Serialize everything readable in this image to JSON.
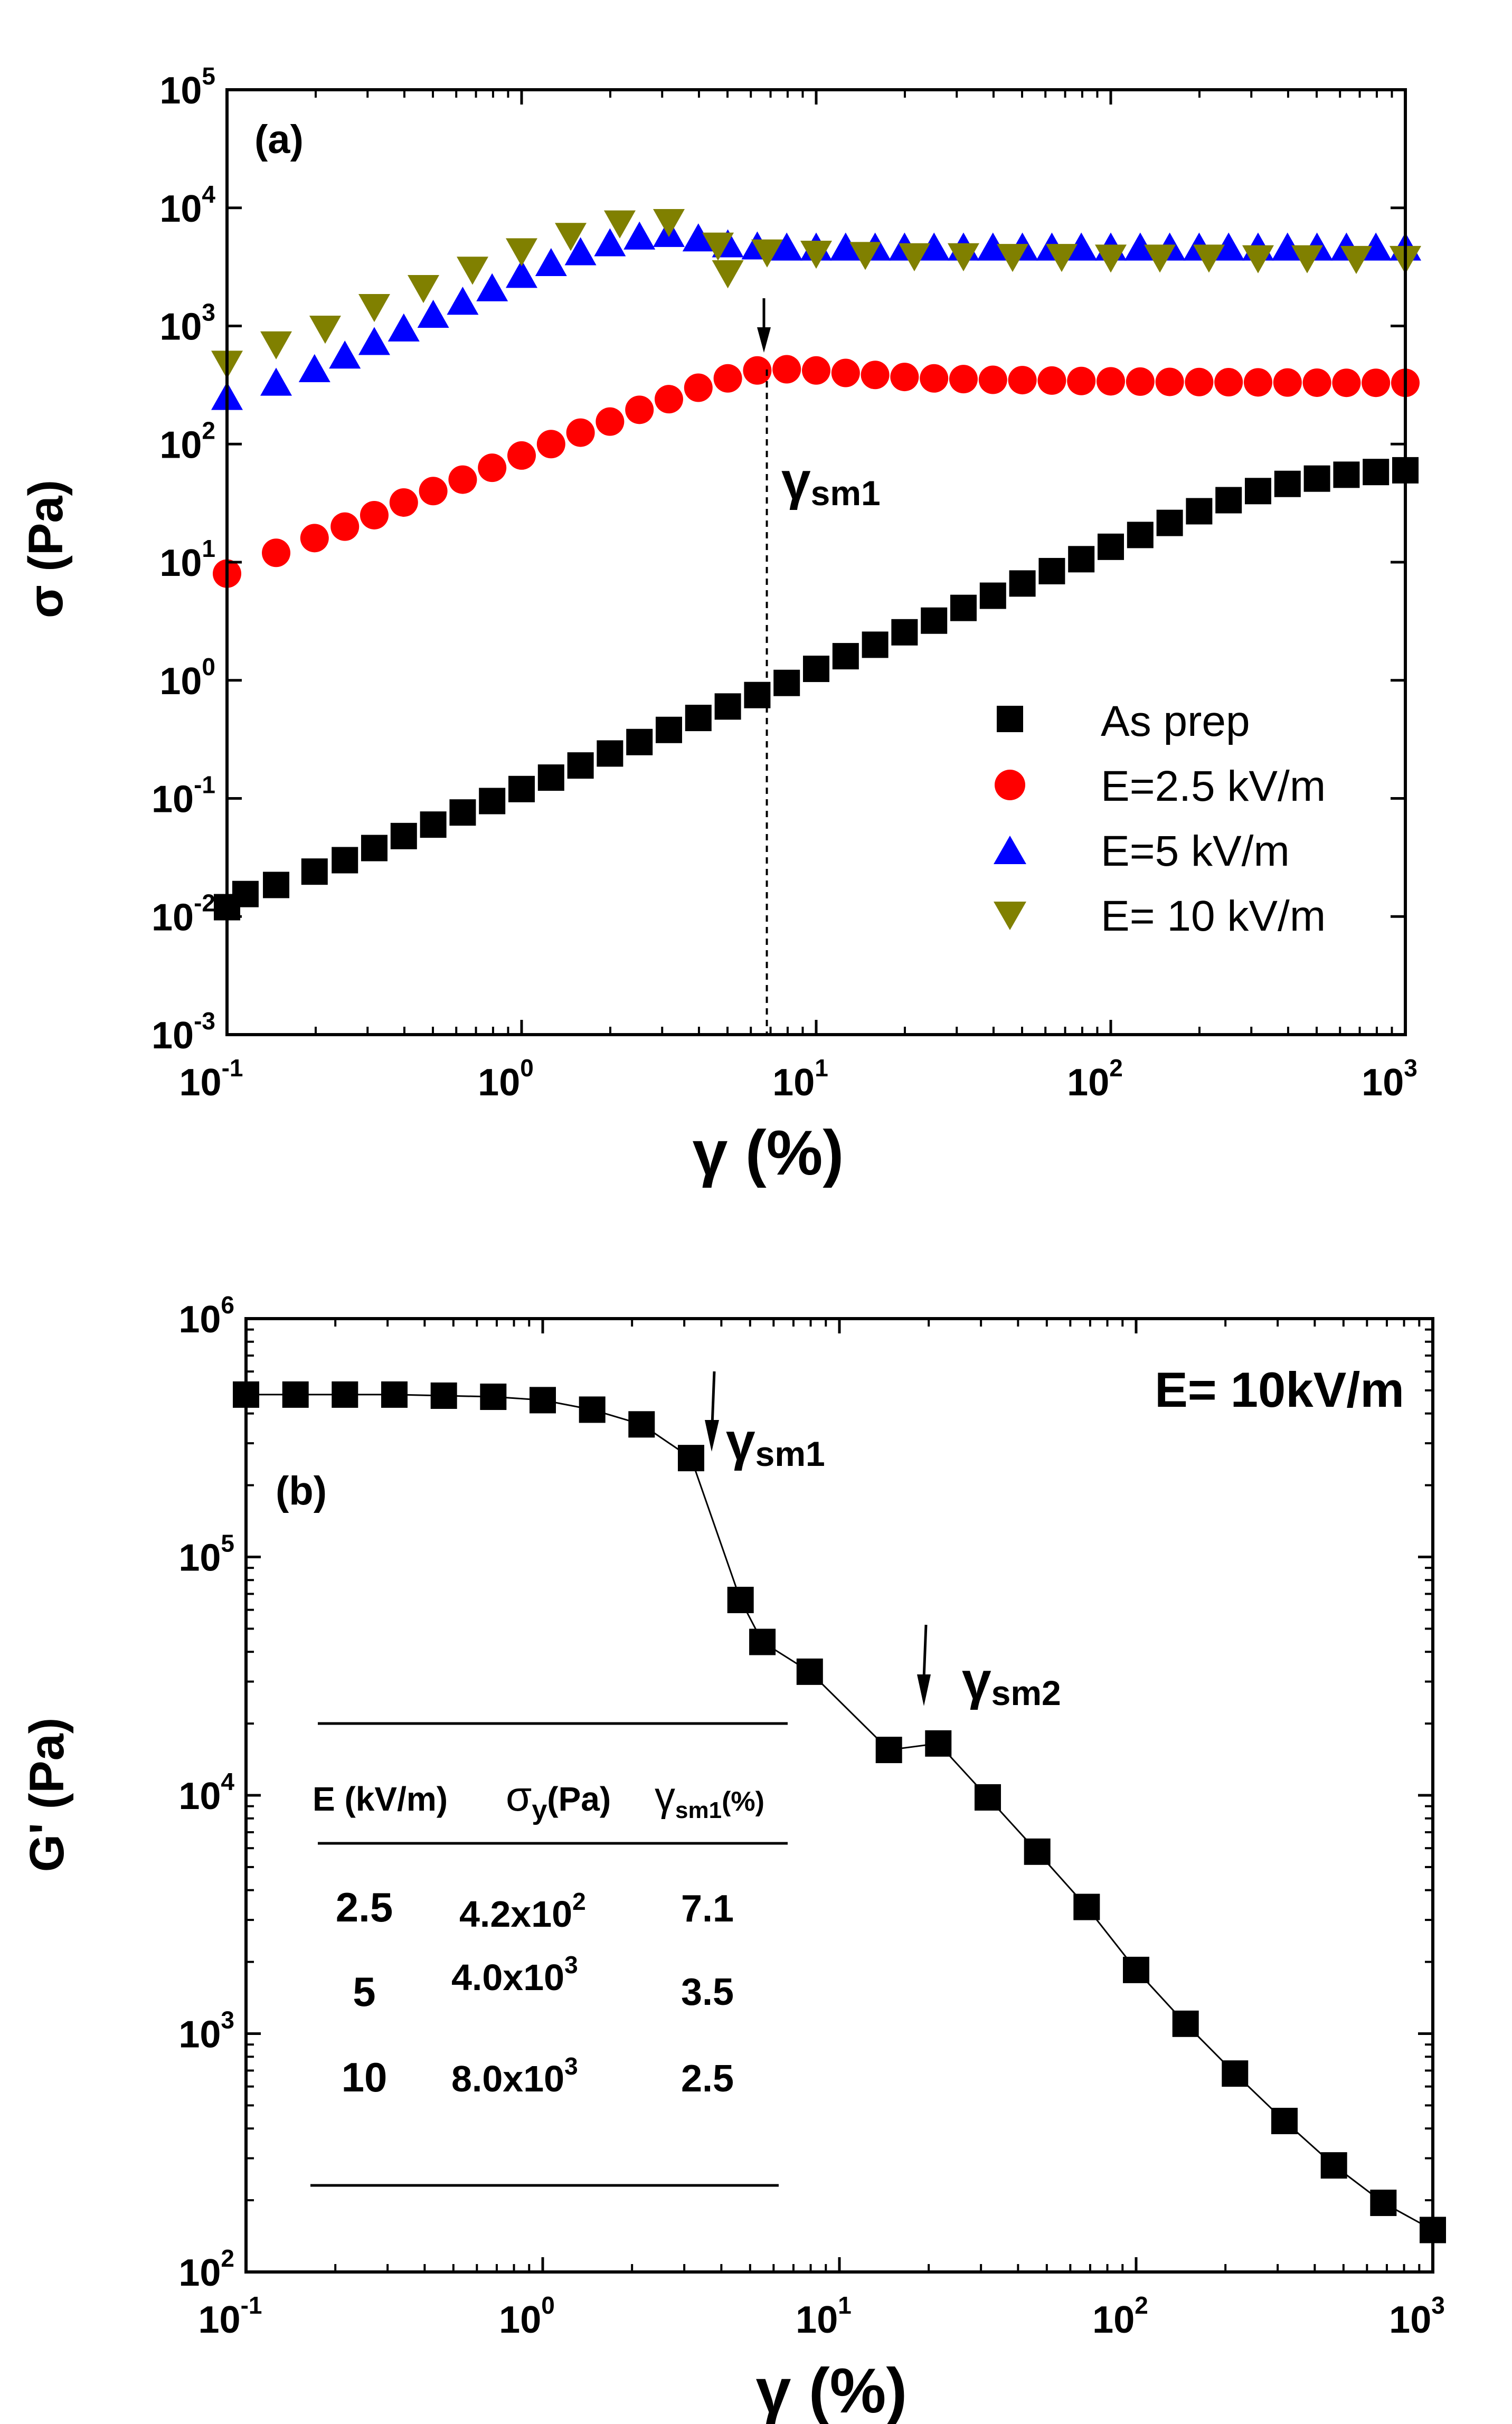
{
  "chart_data": [
    {
      "id": "a",
      "type": "scatter",
      "panel_label": "(a)",
      "xlabel": "γ (%)",
      "ylabel": "σ (Pa)",
      "xscale": "log",
      "yscale": "log",
      "xlim": [
        0.1,
        1000
      ],
      "ylim": [
        0.001,
        100000
      ],
      "x_ticks": [
        {
          "base": "10",
          "exp": "-1"
        },
        {
          "base": "10",
          "exp": "0"
        },
        {
          "base": "10",
          "exp": "1"
        },
        {
          "base": "10",
          "exp": "2"
        },
        {
          "base": "10",
          "exp": "3"
        }
      ],
      "y_ticks": [
        {
          "base": "10",
          "exp": "-3"
        },
        {
          "base": "10",
          "exp": "-2"
        },
        {
          "base": "10",
          "exp": "-1"
        },
        {
          "base": "10",
          "exp": "0"
        },
        {
          "base": "10",
          "exp": "1"
        },
        {
          "base": "10",
          "exp": "2"
        },
        {
          "base": "10",
          "exp": "3"
        },
        {
          "base": "10",
          "exp": "4"
        },
        {
          "base": "10",
          "exp": "5"
        }
      ],
      "legend_position": "lower-right",
      "series": [
        {
          "name": "As prep",
          "marker": "square",
          "color": "#000000",
          "x": [
            0.1,
            0.1155,
            0.1468,
            0.1982,
            0.2512,
            0.3162,
            0.3981,
            0.5012,
            0.631,
            0.7943,
            1.0,
            1.259,
            1.585,
            1.995,
            2.512,
            3.162,
            3.981,
            5.012,
            6.31,
            7.943,
            10.0,
            12.59,
            15.85,
            19.95,
            25.12,
            31.62,
            39.81,
            50.12,
            63.1,
            79.43,
            100,
            125.9,
            158.5,
            199.5,
            251.2,
            316.2,
            398.1,
            501.2,
            631,
            794.3,
            1000
          ],
          "y": [
            0.012,
            0.0155,
            0.0185,
            0.024,
            0.03,
            0.038,
            0.048,
            0.06,
            0.076,
            0.095,
            0.12,
            0.15,
            0.19,
            0.24,
            0.3,
            0.38,
            0.48,
            0.6,
            0.75,
            0.95,
            1.25,
            1.6,
            2.0,
            2.55,
            3.2,
            4.1,
            5.2,
            6.6,
            8.4,
            10.6,
            13.5,
            17.0,
            21.5,
            27.0,
            33.5,
            40.0,
            46.0,
            51.0,
            55.0,
            58.0,
            60.0
          ]
        },
        {
          "name": "E=2.5 kV/m",
          "marker": "circle",
          "color": "#ff0000",
          "x": [
            0.1,
            0.1468,
            0.1982,
            0.2512,
            0.3162,
            0.3981,
            0.5012,
            0.631,
            0.7943,
            1.0,
            1.259,
            1.585,
            1.995,
            2.512,
            3.162,
            3.981,
            5.012,
            6.31,
            7.943,
            10.0,
            12.59,
            15.85,
            19.95,
            25.12,
            31.62,
            39.81,
            50.12,
            63.1,
            79.43,
            100,
            125.9,
            158.5,
            199.5,
            251.2,
            316.2,
            398.1,
            501.2,
            631,
            794.3,
            1000
          ],
          "y": [
            8,
            12,
            16,
            20,
            25,
            32,
            40,
            50,
            63,
            80,
            100,
            125,
            155,
            195,
            240,
            300,
            360,
            420,
            430,
            420,
            400,
            385,
            370,
            360,
            355,
            350,
            348,
            345,
            342,
            340,
            338,
            336,
            335,
            334,
            333,
            332,
            331,
            330,
            330,
            330
          ]
        },
        {
          "name": "E=5 kV/m",
          "marker": "triangle-up",
          "color": "#0000ff",
          "x": [
            0.1,
            0.1468,
            0.1982,
            0.2512,
            0.3162,
            0.3981,
            0.5012,
            0.631,
            0.7943,
            1.0,
            1.259,
            1.585,
            1.995,
            2.512,
            3.162,
            3.981,
            5.012,
            6.31,
            7.943,
            10.0,
            12.59,
            15.85,
            19.95,
            25.12,
            31.62,
            39.81,
            50.12,
            63.1,
            79.43,
            100,
            125.9,
            158.5,
            199.5,
            251.2,
            316.2,
            398.1,
            501.2,
            631,
            794.3,
            1000
          ],
          "y": [
            250,
            330,
            430,
            560,
            730,
            950,
            1240,
            1600,
            2080,
            2700,
            3400,
            4200,
            5000,
            5700,
            6000,
            5500,
            4900,
            4700,
            4600,
            4600,
            4600,
            4600,
            4600,
            4600,
            4600,
            4600,
            4600,
            4600,
            4600,
            4600,
            4600,
            4600,
            4600,
            4600,
            4600,
            4600,
            4600,
            4600,
            4600,
            4600
          ]
        },
        {
          "name": "E= 10 kV/m",
          "marker": "triangle-down",
          "color": "#808000",
          "x": [
            0.1,
            0.1468,
            0.2154,
            0.3162,
            0.4642,
            0.6813,
            1.0,
            1.468,
            2.154,
            3.162,
            4.642,
            5.012,
            6.813,
            10.0,
            14.68,
            21.54,
            31.62,
            46.42,
            68.13,
            100,
            146.8,
            215.4,
            316.2,
            464.2,
            681.3,
            1000
          ],
          "y": [
            480,
            700,
            950,
            1450,
            2100,
            3000,
            4300,
            5800,
            7400,
            7600,
            4800,
            2800,
            4200,
            4100,
            4000,
            3900,
            3900,
            3850,
            3850,
            3800,
            3800,
            3800,
            3750,
            3750,
            3700,
            3700
          ]
        }
      ],
      "annotation": {
        "x": 6.8,
        "label": "γsm1",
        "label_main": "γ",
        "label_sub": "sm1"
      }
    },
    {
      "id": "b",
      "type": "line",
      "panel_label": "(b)",
      "title": "E= 10kV/m",
      "xlabel": "γ (%)",
      "ylabel": "G' (Pa)",
      "xscale": "log",
      "yscale": "log",
      "xlim": [
        0.1,
        1000
      ],
      "ylim": [
        100,
        1000000
      ],
      "x_ticks": [
        {
          "base": "10",
          "exp": "-1"
        },
        {
          "base": "10",
          "exp": "0"
        },
        {
          "base": "10",
          "exp": "1"
        },
        {
          "base": "10",
          "exp": "2"
        },
        {
          "base": "10",
          "exp": "3"
        }
      ],
      "y_ticks": [
        {
          "base": "10",
          "exp": "2"
        },
        {
          "base": "10",
          "exp": "3"
        },
        {
          "base": "10",
          "exp": "4"
        },
        {
          "base": "10",
          "exp": "5"
        },
        {
          "base": "10",
          "exp": "6"
        }
      ],
      "series": [
        {
          "name": "E= 10kV/m",
          "marker": "square",
          "color": "#000000",
          "x": [
            0.1,
            0.1468,
            0.2154,
            0.3162,
            0.4642,
            0.6813,
            1.0,
            1.468,
            2.154,
            3.162,
            4.642,
            5.5,
            7.943,
            14.68,
            21.54,
            31.62,
            46.42,
            68.13,
            100,
            146.8,
            215.4,
            316.2,
            464.2,
            681.3,
            1000
          ],
          "y": [
            480000,
            480000,
            480000,
            480000,
            475000,
            470000,
            455000,
            415000,
            360000,
            260000,
            66000,
            44000,
            33000,
            15500,
            16500,
            9800,
            5800,
            3400,
            1850,
            1100,
            680,
            430,
            280,
            195,
            150
          ]
        }
      ],
      "annotations": [
        {
          "x": 3.5,
          "label": "γsm1",
          "label_main": "γ",
          "label_sub": "sm1"
        },
        {
          "x": 19,
          "label": "γsm2",
          "label_main": "γ",
          "label_sub": "sm2"
        }
      ],
      "inset_table": {
        "headers": [
          {
            "main": "E (kV/m)",
            "sub": ""
          },
          {
            "main": "σ",
            "sub": "y",
            "rest": "(Pa)"
          },
          {
            "main": "γ",
            "sub": "sm1",
            "rest": "(%)"
          }
        ],
        "rows": [
          {
            "E": "2.5",
            "sigma_base": "4.2x10",
            "sigma_exp": "2",
            "gamma": "7.1"
          },
          {
            "E": "5",
            "sigma_base": "4.0x10",
            "sigma_exp": "3",
            "gamma": "3.5"
          },
          {
            "E": "10",
            "sigma_base": "8.0x10",
            "sigma_exp": "3",
            "gamma": "2.5"
          }
        ]
      }
    }
  ]
}
